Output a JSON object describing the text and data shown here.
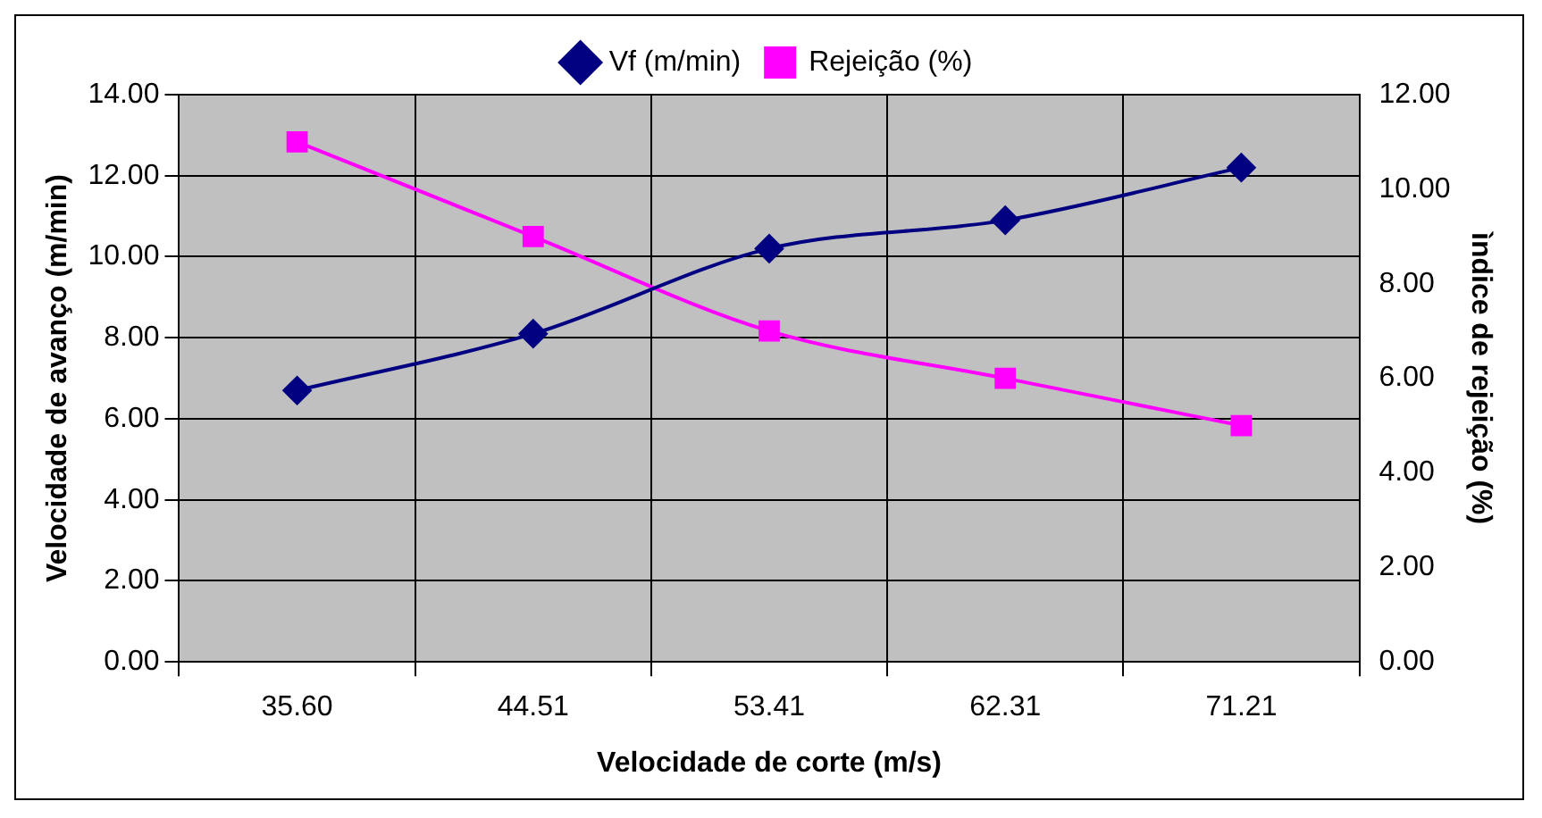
{
  "chart_data": {
    "type": "line",
    "xlabel": "Velocidade de corte (m/s)",
    "ylabel": "Velocidade de avanço (m/min)",
    "y2label": "ìndice de rejeição (%)",
    "categories": [
      "35.60",
      "44.51",
      "53.41",
      "62.31",
      "71.21"
    ],
    "series": [
      {
        "name": "Vf (m/min)",
        "color": "#000080",
        "marker": "diamond",
        "values": [
          6.7,
          8.1,
          10.2,
          10.9,
          12.2
        ]
      },
      {
        "name": "Rejeição (%)",
        "color": "#ff00ff",
        "marker": "square",
        "axis": "y2",
        "values": [
          11,
          9,
          7,
          6,
          5
        ]
      }
    ],
    "ylim": [
      0,
      14
    ],
    "yticks": [
      {
        "value": 0,
        "label": "0.00"
      },
      {
        "value": 2,
        "label": "2.00"
      },
      {
        "value": 4,
        "label": "4.00"
      },
      {
        "value": 6,
        "label": "6.00"
      },
      {
        "value": 8,
        "label": "8.00"
      },
      {
        "value": 10,
        "label": "10.00"
      },
      {
        "value": 12,
        "label": "12.00"
      },
      {
        "value": 14,
        "label": "14.00"
      }
    ],
    "y2lim": [
      0,
      12
    ],
    "y2ticks": [
      {
        "value": 0,
        "label": "0.00"
      },
      {
        "value": 2,
        "label": "2.00"
      },
      {
        "value": 4,
        "label": "4.00"
      },
      {
        "value": 6,
        "label": "6.00"
      },
      {
        "value": 8,
        "label": "8.00"
      },
      {
        "value": 10,
        "label": "10.00"
      },
      {
        "value": 12,
        "label": "12.00"
      }
    ],
    "grid": true,
    "legend": "top"
  }
}
